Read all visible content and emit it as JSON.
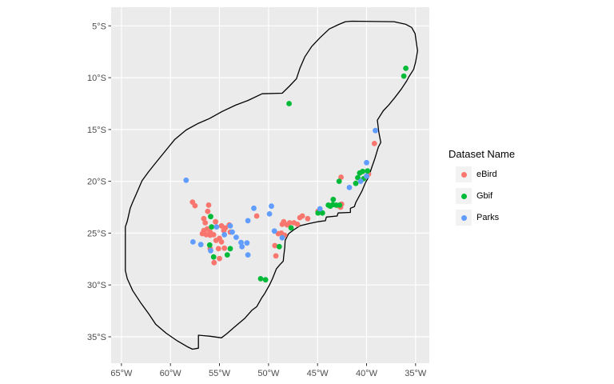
{
  "legend": {
    "title": "Dataset Name",
    "key_bg": "#F2F2F2",
    "items": [
      {
        "label": "eBird",
        "color": "#F8766D"
      },
      {
        "label": "Gbif",
        "color": "#00BA38"
      },
      {
        "label": "Parks",
        "color": "#619CFF"
      }
    ]
  },
  "chart_data": {
    "type": "scatter",
    "subtype": "map-points",
    "title": "",
    "xlabel": "",
    "ylabel": "",
    "grid": "on",
    "legend_position": "right",
    "x_axis": {
      "labels": [
        "65°W",
        "60°W",
        "55°W",
        "50°W",
        "45°W",
        "40°W",
        "35°W"
      ],
      "values": [
        65,
        60,
        55,
        50,
        45,
        40,
        35
      ],
      "unit": "degrees west"
    },
    "y_axis": {
      "labels": [
        "5°S",
        "10°S",
        "15°S",
        "20°S",
        "25°S",
        "30°S",
        "35°S"
      ],
      "values": [
        5,
        10,
        15,
        20,
        25,
        30,
        35
      ],
      "unit": "degrees south"
    },
    "xlim": [
      66.05,
      33.6
    ],
    "ylim": [
      3.2,
      37.55
    ],
    "colors": {
      "panel_bg": "#EBEBEB",
      "grid": "#FFFFFF",
      "boundary": "#000000",
      "axis_text": "#4D4D4D",
      "tick": "#333333"
    },
    "series": [
      {
        "name": "eBird",
        "color": "#F8766D",
        "points": [
          [
            57.75,
            22.0
          ],
          [
            57.5,
            22.35
          ],
          [
            56.1,
            22.3
          ],
          [
            56.2,
            22.9
          ],
          [
            56.6,
            23.6
          ],
          [
            56.45,
            24.0
          ],
          [
            55.4,
            23.9
          ],
          [
            54.8,
            24.3
          ],
          [
            54.4,
            24.5
          ],
          [
            54.0,
            24.2
          ],
          [
            53.9,
            24.9
          ],
          [
            54.55,
            24.75
          ],
          [
            56.6,
            24.75
          ],
          [
            56.25,
            24.6
          ],
          [
            55.95,
            24.9
          ],
          [
            56.75,
            25.05
          ],
          [
            56.35,
            25.15
          ],
          [
            55.95,
            25.2
          ],
          [
            55.6,
            25.15
          ],
          [
            55.35,
            25.7
          ],
          [
            55.0,
            25.5
          ],
          [
            54.8,
            25.85
          ],
          [
            54.5,
            26.45
          ],
          [
            55.1,
            26.5
          ],
          [
            55.95,
            26.5
          ],
          [
            55.0,
            27.45
          ],
          [
            55.55,
            27.85
          ],
          [
            51.2,
            23.35
          ],
          [
            49.35,
            26.2
          ],
          [
            49.25,
            27.2
          ],
          [
            49.0,
            25.05
          ],
          [
            48.7,
            25.0
          ],
          [
            48.35,
            25.2
          ],
          [
            48.6,
            24.15
          ],
          [
            48.1,
            24.2
          ],
          [
            48.45,
            23.9
          ],
          [
            47.85,
            24.0
          ],
          [
            47.4,
            24.0
          ],
          [
            47.05,
            24.15
          ],
          [
            46.8,
            23.5
          ],
          [
            46.55,
            23.35
          ],
          [
            46.0,
            23.6
          ],
          [
            44.95,
            22.9
          ],
          [
            42.9,
            22.35
          ],
          [
            42.55,
            22.2
          ],
          [
            42.65,
            22.5
          ],
          [
            39.8,
            19.3
          ],
          [
            42.6,
            19.6
          ],
          [
            39.2,
            16.35
          ]
        ]
      },
      {
        "name": "Gbif",
        "color": "#00BA38",
        "points": [
          [
            36.0,
            9.1
          ],
          [
            36.2,
            9.85
          ],
          [
            47.9,
            12.5
          ],
          [
            39.9,
            19.0
          ],
          [
            40.4,
            19.05
          ],
          [
            40.7,
            19.2
          ],
          [
            40.9,
            19.65
          ],
          [
            40.3,
            19.75
          ],
          [
            41.1,
            20.2
          ],
          [
            42.8,
            20.0
          ],
          [
            43.4,
            21.75
          ],
          [
            43.45,
            22.25
          ],
          [
            43.7,
            22.4
          ],
          [
            43.9,
            22.3
          ],
          [
            43.1,
            22.3
          ],
          [
            42.75,
            22.3
          ],
          [
            44.95,
            23.05
          ],
          [
            44.5,
            23.05
          ],
          [
            47.7,
            24.5
          ],
          [
            48.9,
            26.3
          ],
          [
            50.8,
            29.4
          ],
          [
            50.3,
            29.5
          ],
          [
            55.9,
            23.4
          ],
          [
            55.8,
            24.4
          ],
          [
            56.0,
            26.15
          ],
          [
            54.2,
            27.1
          ],
          [
            53.9,
            26.5
          ],
          [
            55.6,
            27.3
          ]
        ]
      },
      {
        "name": "Parks",
        "color": "#619CFF",
        "points": [
          [
            58.4,
            19.9
          ],
          [
            39.1,
            15.1
          ],
          [
            40.0,
            18.2
          ],
          [
            40.0,
            19.5
          ],
          [
            40.6,
            20.0
          ],
          [
            41.75,
            20.6
          ],
          [
            51.5,
            22.6
          ],
          [
            49.7,
            22.4
          ],
          [
            49.9,
            23.15
          ],
          [
            52.1,
            23.8
          ],
          [
            53.9,
            24.3
          ],
          [
            53.7,
            24.9
          ],
          [
            54.5,
            25.15
          ],
          [
            53.3,
            25.4
          ],
          [
            52.8,
            25.9
          ],
          [
            52.2,
            25.95
          ],
          [
            52.7,
            26.3
          ],
          [
            52.1,
            27.1
          ],
          [
            57.7,
            25.85
          ],
          [
            56.9,
            26.1
          ],
          [
            55.9,
            26.7
          ],
          [
            55.3,
            24.4
          ],
          [
            49.4,
            24.8
          ],
          [
            48.6,
            25.45
          ],
          [
            44.75,
            22.65
          ]
        ]
      }
    ],
    "boundary_polygon": [
      [
        41.5,
        4.55
      ],
      [
        37.2,
        4.6
      ],
      [
        36.0,
        4.85
      ],
      [
        35.4,
        5.15
      ],
      [
        35.05,
        5.75
      ],
      [
        34.9,
        6.8
      ],
      [
        34.8,
        7.4
      ],
      [
        35.0,
        8.5
      ],
      [
        35.2,
        9.2
      ],
      [
        35.7,
        9.95
      ],
      [
        35.9,
        10.3
      ],
      [
        36.45,
        11.1
      ],
      [
        37.1,
        11.9
      ],
      [
        37.75,
        12.65
      ],
      [
        38.3,
        13.2
      ],
      [
        38.9,
        14.1
      ],
      [
        38.75,
        15.25
      ],
      [
        38.55,
        16.25
      ],
      [
        38.8,
        16.7
      ],
      [
        39.15,
        17.8
      ],
      [
        39.5,
        18.75
      ],
      [
        39.8,
        19.6
      ],
      [
        40.1,
        20.1
      ],
      [
        40.45,
        20.9
      ],
      [
        40.85,
        21.6
      ],
      [
        41.1,
        22.05
      ],
      [
        41.25,
        22.45
      ],
      [
        41.65,
        22.6
      ],
      [
        41.65,
        23.0
      ],
      [
        42.9,
        23.05
      ],
      [
        43.0,
        23.35
      ],
      [
        44.1,
        23.45
      ],
      [
        44.2,
        23.8
      ],
      [
        45.0,
        23.9
      ],
      [
        45.75,
        24.05
      ],
      [
        46.8,
        24.3
      ],
      [
        47.45,
        24.7
      ],
      [
        47.95,
        25.05
      ],
      [
        48.3,
        25.7
      ],
      [
        48.35,
        26.45
      ],
      [
        48.45,
        27.2
      ],
      [
        48.5,
        27.7
      ],
      [
        48.85,
        28.05
      ],
      [
        49.2,
        28.45
      ],
      [
        49.6,
        29.4
      ],
      [
        49.9,
        30.0
      ],
      [
        50.4,
        30.85
      ],
      [
        50.7,
        31.25
      ],
      [
        51.2,
        32.1
      ],
      [
        51.7,
        32.45
      ],
      [
        52.45,
        33.25
      ],
      [
        53.4,
        34.0
      ],
      [
        54.25,
        34.7
      ],
      [
        54.8,
        35.1
      ],
      [
        55.95,
        34.95
      ],
      [
        57.15,
        34.85
      ],
      [
        57.15,
        36.1
      ],
      [
        57.75,
        36.2
      ],
      [
        58.2,
        36.0
      ],
      [
        59.3,
        35.4
      ],
      [
        60.45,
        34.65
      ],
      [
        61.5,
        33.8
      ],
      [
        62.2,
        32.8
      ],
      [
        63.05,
        31.7
      ],
      [
        63.85,
        30.55
      ],
      [
        64.4,
        29.4
      ],
      [
        64.6,
        28.6
      ],
      [
        64.6,
        25.4
      ],
      [
        64.6,
        24.4
      ],
      [
        64.4,
        23.85
      ],
      [
        64.1,
        22.6
      ],
      [
        63.85,
        22.0
      ],
      [
        63.45,
        21.15
      ],
      [
        62.9,
        19.95
      ],
      [
        62.25,
        19.1
      ],
      [
        61.4,
        18.1
      ],
      [
        60.5,
        17.05
      ],
      [
        59.55,
        15.95
      ],
      [
        58.4,
        15.05
      ],
      [
        57.15,
        14.4
      ],
      [
        56.05,
        13.95
      ],
      [
        54.7,
        13.25
      ],
      [
        53.35,
        12.65
      ],
      [
        52.1,
        12.2
      ],
      [
        50.65,
        11.55
      ],
      [
        48.6,
        11.5
      ],
      [
        47.85,
        10.8
      ],
      [
        47.15,
        10.1
      ],
      [
        46.8,
        9.1
      ],
      [
        46.3,
        8.0
      ],
      [
        45.6,
        7.0
      ],
      [
        44.75,
        6.15
      ],
      [
        43.8,
        5.3
      ],
      [
        42.8,
        4.85
      ],
      [
        42.15,
        4.6
      ]
    ]
  }
}
